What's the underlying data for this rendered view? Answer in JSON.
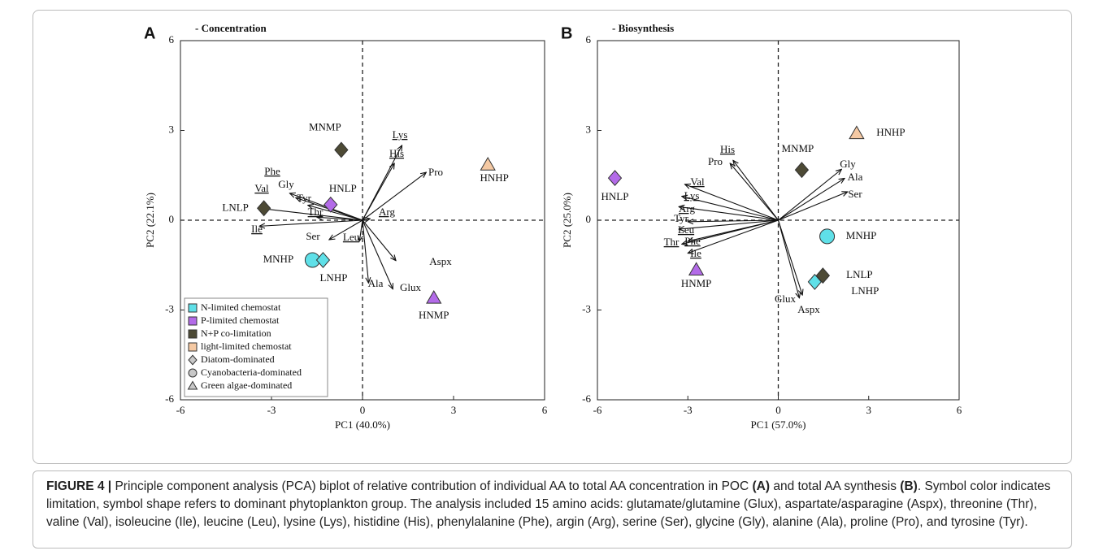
{
  "chart_data": [
    {
      "type": "biplot",
      "panel": "A",
      "title": "- Concentration",
      "xlabel": "PC1 (40.0%)",
      "ylabel": "PC2 (22.1%)",
      "xlim": [
        -6,
        6
      ],
      "ylim": [
        -6,
        6
      ],
      "xticks": [
        -6,
        -3,
        0,
        3,
        6
      ],
      "yticks": [
        -6,
        -3,
        0,
        3,
        6
      ],
      "points": [
        {
          "name": "MNMP",
          "x": -0.7,
          "y": 2.35,
          "color": "#4d4a35",
          "shape": "diamond"
        },
        {
          "name": "HNHP",
          "x": 4.13,
          "y": 1.85,
          "color": "#f5c9a3",
          "shape": "triangle"
        },
        {
          "name": "HNLP",
          "x": -1.05,
          "y": 0.52,
          "color": "#b36be8",
          "shape": "diamond"
        },
        {
          "name": "LNLP",
          "x": -3.25,
          "y": 0.4,
          "color": "#4d4a35",
          "shape": "diamond"
        },
        {
          "name": "MNHP",
          "x": -1.65,
          "y": -1.33,
          "color": "#5fe0e8",
          "shape": "circle"
        },
        {
          "name": "LNHP",
          "x": -1.3,
          "y": -1.33,
          "color": "#5fe0e8",
          "shape": "diamond"
        },
        {
          "name": "HNMP",
          "x": 2.35,
          "y": -2.6,
          "color": "#b36be8",
          "shape": "triangle"
        }
      ],
      "loadings": [
        {
          "name": "Lys",
          "x": 1.3,
          "y": 2.5,
          "underline": true
        },
        {
          "name": "His",
          "x": 1.05,
          "y": 1.9,
          "underline": true
        },
        {
          "name": "Pro",
          "x": 2.1,
          "y": 1.6,
          "underline": false
        },
        {
          "name": "Arg",
          "x": 0.25,
          "y": 0.05,
          "underline": true
        },
        {
          "name": "Leu",
          "x": -0.1,
          "y": -0.7,
          "underline": true
        },
        {
          "name": "Aspx",
          "x": 1.1,
          "y": -1.35,
          "underline": false
        },
        {
          "name": "Glux",
          "x": 1.0,
          "y": -2.3,
          "underline": false
        },
        {
          "name": "Ala",
          "x": 0.2,
          "y": -2.1,
          "underline": false
        },
        {
          "name": "Ser",
          "x": -1.1,
          "y": -0.65,
          "underline": false
        },
        {
          "name": "Ile",
          "x": -3.4,
          "y": -0.2,
          "underline": true
        },
        {
          "name": "Thr",
          "x": -1.5,
          "y": 0.1,
          "underline": true
        },
        {
          "name": "Tyr",
          "x": -1.8,
          "y": 0.5,
          "underline": false
        },
        {
          "name": "Val",
          "x": -3.4,
          "y": 0.4,
          "underline": true
        },
        {
          "name": "Gly",
          "x": -2.2,
          "y": 0.75,
          "underline": false
        },
        {
          "name": "Phe",
          "x": -2.4,
          "y": 0.9,
          "underline": true
        }
      ],
      "legend": [
        {
          "label": "N-limited chemostat",
          "color": "#5fe0e8",
          "shape": "square"
        },
        {
          "label": "P-limited chemostat",
          "color": "#b36be8",
          "shape": "square"
        },
        {
          "label": "N+P co-limitation",
          "color": "#4d4a35",
          "shape": "square"
        },
        {
          "label": "light-limited chemostat",
          "color": "#f5c9a3",
          "shape": "square"
        },
        {
          "label": "Diatom-dominated",
          "color": "#c8c8c8",
          "shape": "diamond"
        },
        {
          "label": "Cyanobacteria-dominated",
          "color": "#c8c8c8",
          "shape": "circle"
        },
        {
          "label": "Green algae-dominated",
          "color": "#c8c8c8",
          "shape": "triangle"
        }
      ]
    },
    {
      "type": "biplot",
      "panel": "B",
      "title": "- Biosynthesis",
      "xlabel": "PC1 (57.0%)",
      "ylabel": "PC2 (25.0%)",
      "xlim": [
        -6,
        6
      ],
      "ylim": [
        -6,
        6
      ],
      "xticks": [
        -6,
        -3,
        0,
        3,
        6
      ],
      "yticks": [
        -6,
        -3,
        0,
        3,
        6
      ],
      "points": [
        {
          "name": "HNHP",
          "x": 2.6,
          "y": 2.9,
          "color": "#f5c9a3",
          "shape": "triangle"
        },
        {
          "name": "MNMP",
          "x": 0.78,
          "y": 1.68,
          "color": "#4d4a35",
          "shape": "diamond"
        },
        {
          "name": "HNLP",
          "x": -5.42,
          "y": 1.41,
          "color": "#b36be8",
          "shape": "diamond"
        },
        {
          "name": "MNHP",
          "x": 1.62,
          "y": -0.54,
          "color": "#5fe0e8",
          "shape": "circle"
        },
        {
          "name": "LNLP",
          "x": 1.48,
          "y": -1.85,
          "color": "#4d4a35",
          "shape": "diamond"
        },
        {
          "name": "LNHP",
          "x": 1.21,
          "y": -2.06,
          "color": "#5fe0e8",
          "shape": "diamond"
        },
        {
          "name": "HNMP",
          "x": -2.72,
          "y": -1.66,
          "color": "#b36be8",
          "shape": "triangle"
        }
      ],
      "loadings": [
        {
          "name": "His",
          "x": -1.5,
          "y": 2.0,
          "underline": true
        },
        {
          "name": "Pro",
          "x": -1.6,
          "y": 1.9,
          "underline": false
        },
        {
          "name": "Gly",
          "x": 2.1,
          "y": 1.7,
          "underline": false
        },
        {
          "name": "Ala",
          "x": 2.2,
          "y": 1.4,
          "underline": false
        },
        {
          "name": "Ser",
          "x": 2.3,
          "y": 0.95,
          "underline": false
        },
        {
          "name": "Val",
          "x": -3.1,
          "y": 1.2,
          "underline": true
        },
        {
          "name": "Lys",
          "x": -3.2,
          "y": 0.8,
          "underline": true
        },
        {
          "name": "Arg",
          "x": -3.3,
          "y": 0.45,
          "underline": true
        },
        {
          "name": "Tyr",
          "x": -3.0,
          "y": -0.05,
          "underline": false
        },
        {
          "name": "Leu",
          "x": -3.3,
          "y": -0.3,
          "underline": true
        },
        {
          "name": "Phe",
          "x": -3.0,
          "y": -0.7,
          "underline": true
        },
        {
          "name": "Thr",
          "x": -3.2,
          "y": -0.8,
          "underline": true
        },
        {
          "name": "Ile",
          "x": -3.0,
          "y": -1.1,
          "underline": true
        },
        {
          "name": "Glux",
          "x": 0.7,
          "y": -2.6,
          "underline": false
        },
        {
          "name": "Aspx",
          "x": 0.8,
          "y": -2.5,
          "underline": false
        }
      ]
    }
  ],
  "caption": {
    "label": "FIGURE 4 |",
    "parts": [
      {
        "text": " Principle component analysis (PCA) biplot of relative contribution of individual AA to total AA concentration in POC ",
        "bold": false
      },
      {
        "text": "(A)",
        "bold": true
      },
      {
        "text": " and total AA synthesis ",
        "bold": false
      },
      {
        "text": "(B)",
        "bold": true
      },
      {
        "text": ". Symbol color indicates limitation, symbol shape refers to dominant phytoplankton group. The analysis included 15 amino acids: glutamate/glutamine (Glux), aspartate/asparagine (Aspx), threonine (Thr), valine (Val), isoleucine (Ile), leucine (Leu), lysine (Lys), histidine (His), phenylalanine (Phe), argin (Arg), serine (Ser), glycine (Gly), alanine (Ala), proline (Pro), and tyrosine (Tyr).",
        "bold": false
      }
    ]
  }
}
